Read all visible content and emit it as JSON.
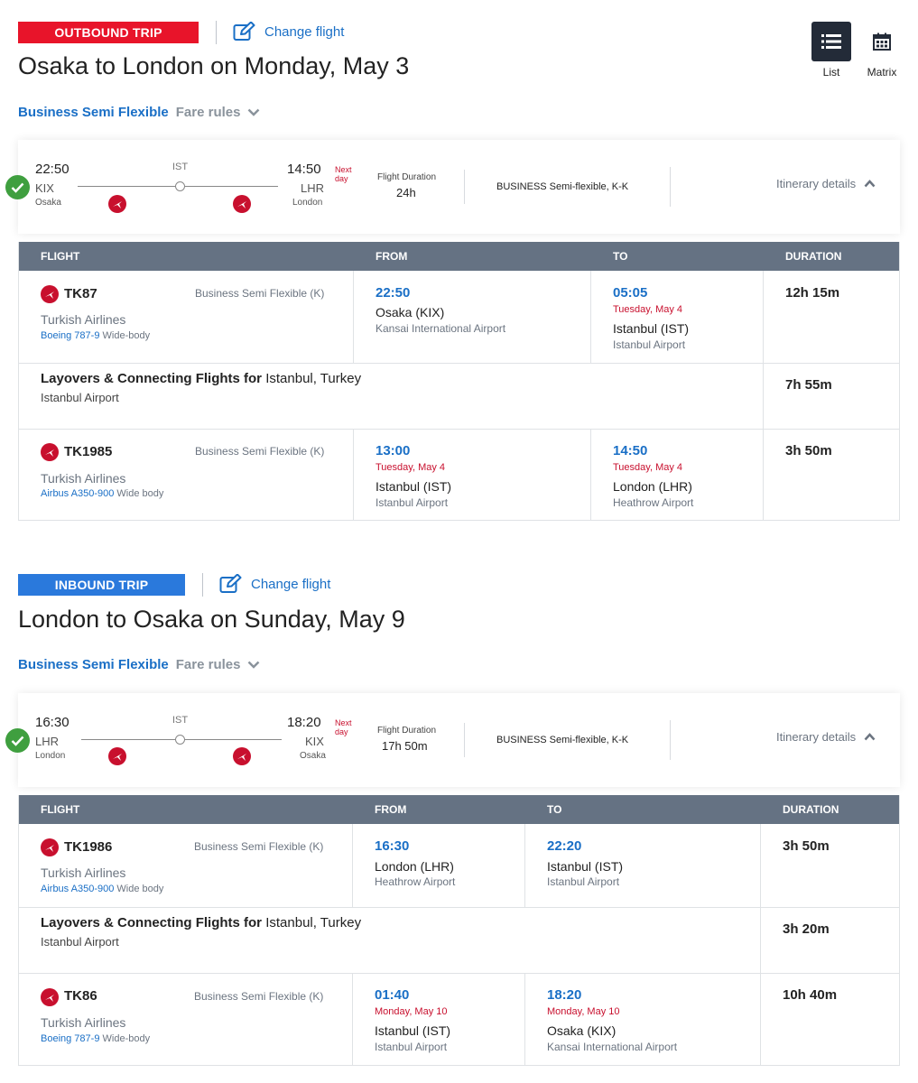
{
  "view_toggle": {
    "list_label": "List",
    "matrix_label": "Matrix"
  },
  "colors": {
    "outbound_badge": "#e8142a",
    "inbound_badge": "#2a79dc",
    "accent_blue": "#1a6fc6",
    "alert_red": "#c8102e",
    "table_header": "#657283",
    "check_green": "#3f9f3f"
  },
  "outbound": {
    "badge": "OUTBOUND TRIP",
    "change_flight": "Change flight",
    "title": "Osaka to London on Monday, May 3",
    "fare_name": "Business Semi Flexible",
    "fare_rules": "Fare rules",
    "summary": {
      "dep_time": "22:50",
      "dep_code": "KIX",
      "dep_city": "Osaka",
      "stop": "IST",
      "arr_time": "14:50",
      "arr_code": "LHR",
      "arr_city": "London",
      "next_day_1": "Next",
      "next_day_2": "day",
      "duration_label": "Flight Duration",
      "duration": "24h",
      "cabin": "BUSINESS Semi-flexible, K-K",
      "itinerary": "Itinerary details"
    },
    "table": {
      "headers": {
        "flight": "FLIGHT",
        "from": "FROM",
        "to": "TO",
        "duration": "DURATION"
      },
      "seg1": {
        "flight_no": "TK87",
        "fare": "Business Semi Flexible (K)",
        "airline": "Turkish Airlines",
        "aircraft_model": "Boeing 787-9",
        "aircraft_type": "Wide-body",
        "from_time": "22:50",
        "from_city": "Osaka (KIX)",
        "from_airport": "Kansai International Airport",
        "to_time": "05:05",
        "to_date": "Tuesday, May 4",
        "to_city": "Istanbul (IST)",
        "to_airport": "Istanbul Airport",
        "duration": "12h 15m"
      },
      "layover": {
        "label": "Layovers & Connecting Flights for",
        "place": "Istanbul, Turkey",
        "airport": "Istanbul Airport",
        "duration": "7h 55m"
      },
      "seg2": {
        "flight_no": "TK1985",
        "fare": "Business Semi Flexible (K)",
        "airline": "Turkish Airlines",
        "aircraft_model": "Airbus A350-900",
        "aircraft_type": "Wide body",
        "from_time": "13:00",
        "from_date": "Tuesday, May 4",
        "from_city": "Istanbul (IST)",
        "from_airport": "Istanbul Airport",
        "to_time": "14:50",
        "to_date": "Tuesday, May 4",
        "to_city": "London (LHR)",
        "to_airport": "Heathrow Airport",
        "duration": "3h 50m"
      }
    }
  },
  "inbound": {
    "badge": "INBOUND TRIP",
    "change_flight": "Change flight",
    "title": "London to Osaka on Sunday, May 9",
    "fare_name": "Business Semi Flexible",
    "fare_rules": "Fare rules",
    "summary": {
      "dep_time": "16:30",
      "dep_code": "LHR",
      "dep_city": "London",
      "stop": "IST",
      "arr_time": "18:20",
      "arr_code": "KIX",
      "arr_city": "Osaka",
      "next_day_1": "Next",
      "next_day_2": "day",
      "duration_label": "Flight Duration",
      "duration": "17h 50m",
      "cabin": "BUSINESS Semi-flexible, K-K",
      "itinerary": "Itinerary details"
    },
    "table": {
      "headers": {
        "flight": "FLIGHT",
        "from": "FROM",
        "to": "TO",
        "duration": "DURATION"
      },
      "seg1": {
        "flight_no": "TK1986",
        "fare": "Business Semi Flexible (K)",
        "airline": "Turkish Airlines",
        "aircraft_model": "Airbus A350-900",
        "aircraft_type": "Wide body",
        "from_time": "16:30",
        "from_city": "London (LHR)",
        "from_airport": "Heathrow Airport",
        "to_time": "22:20",
        "to_city": "Istanbul (IST)",
        "to_airport": "Istanbul Airport",
        "duration": "3h 50m"
      },
      "layover": {
        "label": "Layovers & Connecting Flights for",
        "place": "Istanbul, Turkey",
        "airport": "Istanbul Airport",
        "duration": "3h 20m"
      },
      "seg2": {
        "flight_no": "TK86",
        "fare": "Business Semi Flexible (K)",
        "airline": "Turkish Airlines",
        "aircraft_model": "Boeing 787-9",
        "aircraft_type": "Wide-body",
        "from_time": "01:40",
        "from_date": "Monday, May 10",
        "from_city": "Istanbul (IST)",
        "from_airport": "Istanbul Airport",
        "to_time": "18:20",
        "to_date": "Monday, May 10",
        "to_city": "Osaka (KIX)",
        "to_airport": "Kansai International Airport",
        "duration": "10h 40m"
      }
    }
  }
}
